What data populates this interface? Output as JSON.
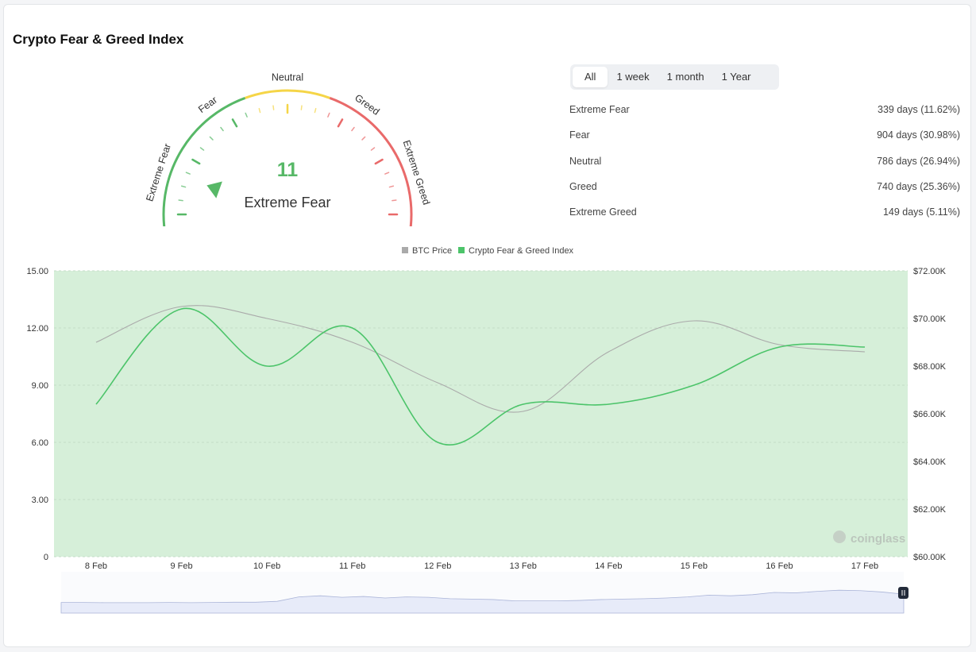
{
  "title": "Crypto Fear & Greed Index",
  "gauge": {
    "value": "11",
    "value_num": 11,
    "label": "Extreme Fear",
    "segments": [
      "Extreme Fear",
      "Fear",
      "Neutral",
      "Greed",
      "Extreme Greed"
    ],
    "colors": {
      "green": "#57b867",
      "yellow": "#f5d547",
      "red": "#e96a6a",
      "value": "#57b867"
    }
  },
  "tabs": [
    {
      "label": "All",
      "active": true
    },
    {
      "label": "1 week",
      "active": false
    },
    {
      "label": "1 month",
      "active": false
    },
    {
      "label": "1 Year",
      "active": false
    }
  ],
  "stats": [
    {
      "label": "Extreme Fear",
      "value": "339 days (11.62%)"
    },
    {
      "label": "Fear",
      "value": "904 days (30.98%)"
    },
    {
      "label": "Neutral",
      "value": "786 days (26.94%)"
    },
    {
      "label": "Greed",
      "value": "740 days (25.36%)"
    },
    {
      "label": "Extreme Greed",
      "value": "149 days (5.11%)"
    }
  ],
  "chart_data": {
    "type": "line",
    "legend": [
      {
        "name": "BTC Price",
        "color": "#aaaaaa"
      },
      {
        "name": "Crypto Fear & Greed Index",
        "color": "#4cc46a"
      }
    ],
    "legend_position": "top-center",
    "categories": [
      "8 Feb",
      "9 Feb",
      "10 Feb",
      "11 Feb",
      "12 Feb",
      "13 Feb",
      "14 Feb",
      "15 Feb",
      "16 Feb",
      "17 Feb"
    ],
    "series": [
      {
        "name": "Crypto Fear & Greed Index",
        "axis": "left",
        "color": "#4cc46a",
        "values": [
          8,
          13,
          10,
          12,
          6,
          8,
          8,
          9,
          11,
          11
        ]
      },
      {
        "name": "BTC Price",
        "axis": "right",
        "color": "#aaaaaa",
        "values": [
          69000,
          70500,
          70000,
          69000,
          67300,
          66100,
          68600,
          69900,
          68900,
          68600
        ]
      }
    ],
    "y_left": {
      "min": 0,
      "max": 15,
      "ticks": [
        "15.00",
        "12.00",
        "9.00",
        "6.00",
        "3.00",
        "0"
      ]
    },
    "y_right": {
      "min": 60000,
      "max": 72000,
      "ticks": [
        "$72.00K",
        "$70.00K",
        "$68.00K",
        "$66.00K",
        "$64.00K",
        "$62.00K",
        "$60.00K"
      ]
    },
    "background_zone_color": "#d6efd9",
    "grid": true,
    "watermark": "coinglass",
    "navigator": [
      0.05,
      0.05,
      0.04,
      0.04,
      0.04,
      0.05,
      0.04,
      0.05,
      0.06,
      0.06,
      0.1,
      0.3,
      0.35,
      0.28,
      0.32,
      0.25,
      0.3,
      0.28,
      0.22,
      0.2,
      0.18,
      0.12,
      0.12,
      0.12,
      0.14,
      0.18,
      0.2,
      0.22,
      0.25,
      0.3,
      0.38,
      0.35,
      0.4,
      0.5,
      0.48,
      0.55,
      0.6,
      0.58,
      0.52,
      0.42
    ]
  }
}
